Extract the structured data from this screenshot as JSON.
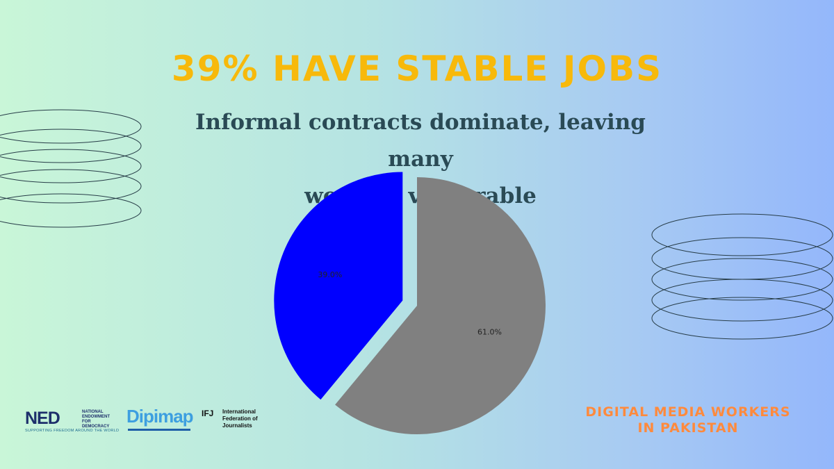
{
  "title": "39% HAVE STABLE JOBS",
  "subtitle_lines": [
    "Informal contracts dominate, leaving many",
    "workers vulnerable"
  ],
  "chart_data": {
    "type": "pie",
    "slices": [
      {
        "label": "39.0%",
        "value": 39.0,
        "color": "#0000ff",
        "exploded": true
      },
      {
        "label": "61.0%",
        "value": 61.0,
        "color": "#808080",
        "exploded": false
      }
    ],
    "start_angle_deg": 90,
    "direction": "counterclockwise",
    "legend": "none"
  },
  "footer": {
    "project_lines": [
      "DIGITAL MEDIA WORKERS",
      "IN PAKISTAN"
    ],
    "logos": {
      "ned": {
        "mark": "NED",
        "name_lines": [
          "NATIONAL",
          "ENDOWMENT",
          "FOR",
          "DEMOCRACY"
        ],
        "tagline": "SUPPORTING FREEDOM AROUND THE WORLD"
      },
      "dipimap": {
        "mark": "Dipimap"
      },
      "ifj": {
        "mark": "IFJ",
        "name_lines": [
          "International",
          "Federation of",
          "Journalists"
        ]
      }
    }
  },
  "colors": {
    "title": "#f7b90b",
    "subtitle": "#2a4a55",
    "footer": "#ff8a3d",
    "rings": "#263c47"
  }
}
